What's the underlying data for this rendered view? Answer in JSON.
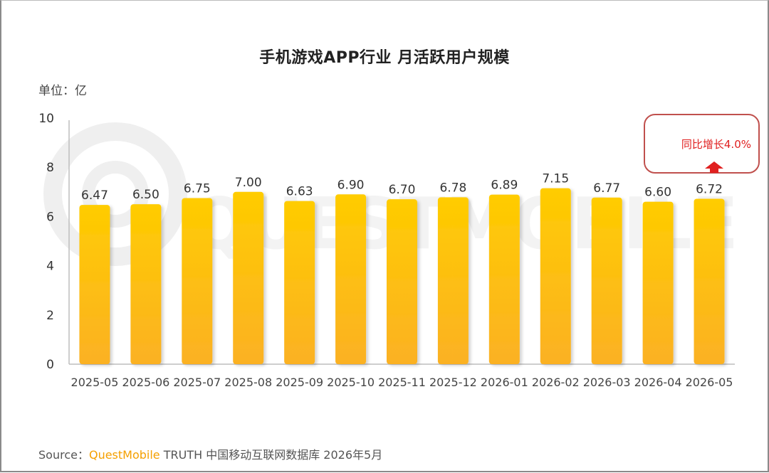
{
  "title": "手机游戏APP行业 月活跃用户规模",
  "unit_label": "单位：亿",
  "callout": {
    "text": "同比增长4.0%",
    "arrow_icon": "up-arrow-icon",
    "color": "#e02020"
  },
  "source": {
    "prefix": "Source：",
    "brand": "QuestMobile",
    "suffix": " TRUTH 中国移动互联网数据库 2026年5月"
  },
  "watermark_text": "QUESTMOBILE",
  "colors": {
    "bar_top": "#FFCC00",
    "bar_bottom": "#FBB124",
    "accent": "#F5A000",
    "callout_border": "#C0504D"
  },
  "chart_data": {
    "type": "bar",
    "categories": [
      "2025-05",
      "2025-06",
      "2025-07",
      "2025-08",
      "2025-09",
      "2025-10",
      "2025-11",
      "2025-12",
      "2026-01",
      "2026-02",
      "2026-03",
      "2026-04",
      "2026-05"
    ],
    "values": [
      6.47,
      6.5,
      6.75,
      7.0,
      6.63,
      6.9,
      6.7,
      6.78,
      6.89,
      7.15,
      6.77,
      6.6,
      6.72
    ],
    "value_labels": [
      "6.47",
      "6.50",
      "6.75",
      "7.00",
      "6.63",
      "6.90",
      "6.70",
      "6.78",
      "6.89",
      "7.15",
      "6.77",
      "6.60",
      "6.72"
    ],
    "title": "手机游戏APP行业 月活跃用户规模",
    "xlabel": "",
    "ylabel": "单位：亿",
    "ylim": [
      0,
      10
    ],
    "yticks": [
      "0",
      "2",
      "4",
      "6",
      "8",
      "10"
    ],
    "grid": false,
    "legend": "none"
  }
}
